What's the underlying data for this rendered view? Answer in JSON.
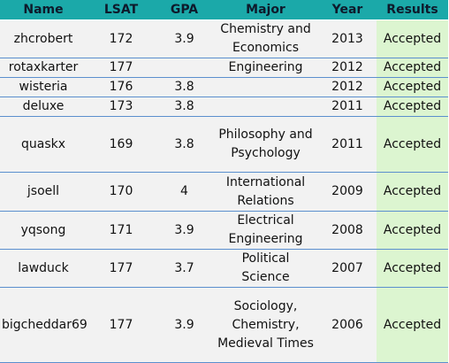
{
  "table": {
    "headers": {
      "name": "Name",
      "lsat": "LSAT",
      "gpa": "GPA",
      "major": "Major",
      "year": "Year",
      "result": "Results"
    },
    "rows": [
      {
        "name": "zhcrobert",
        "lsat": "172",
        "gpa": "3.9",
        "major": "Chemistry and Economics",
        "year": "2013",
        "result": "Accepted"
      },
      {
        "name": "rotaxkarter",
        "lsat": "177",
        "gpa": "",
        "major": "Engineering",
        "year": "2012",
        "result": "Accepted"
      },
      {
        "name": "wisteria",
        "lsat": "176",
        "gpa": "3.8",
        "major": "",
        "year": "2012",
        "result": "Accepted"
      },
      {
        "name": "deluxe",
        "lsat": "173",
        "gpa": "3.8",
        "major": "",
        "year": "2011",
        "result": "Accepted"
      },
      {
        "name": "quaskx",
        "lsat": "169",
        "gpa": "3.8",
        "major": "Philosophy and Psychology",
        "year": "2011",
        "result": "Accepted"
      },
      {
        "name": "jsoell",
        "lsat": "170",
        "gpa": "4",
        "major": "International Relations",
        "year": "2009",
        "result": "Accepted"
      },
      {
        "name": "yqsong",
        "lsat": "171",
        "gpa": "3.9",
        "major": "Electrical Engineering",
        "year": "2008",
        "result": "Accepted"
      },
      {
        "name": "lawduck",
        "lsat": "177",
        "gpa": "3.7",
        "major": "Political Science",
        "year": "2007",
        "result": "Accepted"
      },
      {
        "name": "bigcheddar69",
        "lsat": "177",
        "gpa": "3.9",
        "major": "Sociology, Chemistry, Medieval Times",
        "year": "2006",
        "result": "Accepted"
      }
    ]
  },
  "colors": {
    "header_bg": "#1ba9a9",
    "cell_bg": "#f2f2f2",
    "accepted_bg": "#dcf5d0",
    "row_border": "#5b8fce"
  }
}
